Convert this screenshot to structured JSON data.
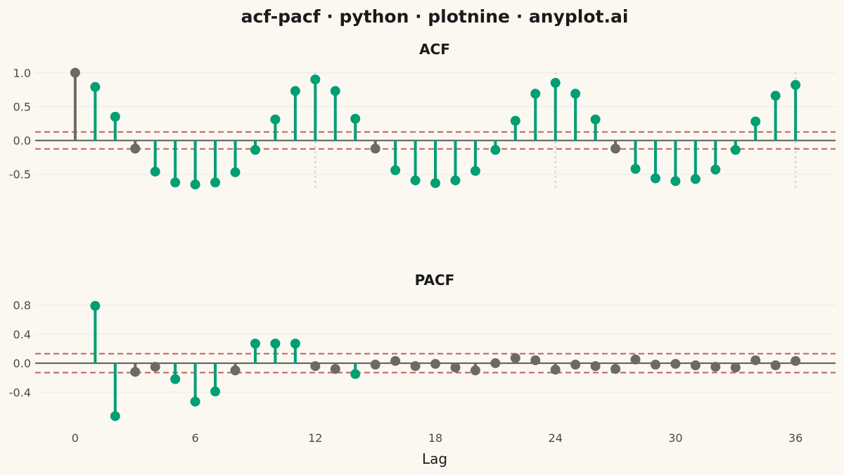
{
  "title": "acf-pacf · python · plotnine · anyplot.ai",
  "colors": {
    "background": "#FAF8F1",
    "significant": "#009E73",
    "insignificant": "#6B6B63",
    "confidence_band": "#C0605C",
    "zero_line": "#5A5A55",
    "seasonal_marker": "#A9D9C6",
    "grid": "#ECEAE2"
  },
  "chart_data": [
    {
      "type": "stem",
      "title": "ACF",
      "xlabel": "",
      "ylabel": "",
      "xlim": [
        -2,
        38
      ],
      "ylim": [
        -0.95,
        1.18
      ],
      "yticks": [
        1.0,
        0.5,
        0.0,
        -0.5
      ],
      "ytick_labels": [
        "1.0",
        "0.5",
        "0.0",
        "-0.5"
      ],
      "confidence_bound": 0.125,
      "seasonal_lags": [
        12,
        24,
        36
      ],
      "lags": [
        0,
        1,
        2,
        3,
        4,
        5,
        6,
        7,
        8,
        9,
        10,
        11,
        12,
        13,
        14,
        15,
        16,
        17,
        18,
        19,
        20,
        21,
        22,
        23,
        24,
        25,
        26,
        27,
        28,
        29,
        30,
        31,
        32,
        33,
        34,
        35,
        36
      ],
      "values": [
        1.0,
        0.79,
        0.35,
        -0.12,
        -0.46,
        -0.62,
        -0.65,
        -0.62,
        -0.47,
        -0.14,
        0.31,
        0.73,
        0.9,
        0.73,
        0.32,
        -0.12,
        -0.44,
        -0.59,
        -0.63,
        -0.59,
        -0.45,
        -0.14,
        0.29,
        0.69,
        0.85,
        0.69,
        0.31,
        -0.12,
        -0.42,
        -0.56,
        -0.6,
        -0.57,
        -0.43,
        -0.14,
        0.28,
        0.66,
        0.82
      ]
    },
    {
      "type": "stem",
      "title": "PACF",
      "xlabel": "Lag",
      "ylabel": "",
      "xlim": [
        -2,
        38
      ],
      "ylim": [
        -0.95,
        1.0
      ],
      "yticks": [
        0.8,
        0.4,
        0.0,
        -0.4
      ],
      "ytick_labels": [
        "0.8",
        "0.4",
        "0.0",
        "-0.4"
      ],
      "xticks": [
        0,
        6,
        12,
        18,
        24,
        30,
        36
      ],
      "xtick_labels": [
        "0",
        "6",
        "12",
        "18",
        "24",
        "30",
        "36"
      ],
      "confidence_bound": 0.13,
      "lags": [
        1,
        2,
        3,
        4,
        5,
        6,
        7,
        8,
        9,
        10,
        11,
        12,
        13,
        14,
        15,
        16,
        17,
        18,
        19,
        20,
        21,
        22,
        23,
        24,
        25,
        26,
        27,
        28,
        29,
        30,
        31,
        32,
        33,
        34,
        35,
        36
      ],
      "values": [
        0.79,
        -0.73,
        -0.12,
        -0.05,
        -0.22,
        -0.53,
        -0.39,
        -0.1,
        0.27,
        0.27,
        0.27,
        -0.04,
        -0.08,
        -0.15,
        -0.02,
        0.03,
        -0.04,
        -0.01,
        -0.06,
        -0.1,
        0.0,
        0.07,
        0.04,
        -0.09,
        -0.02,
        -0.04,
        -0.08,
        0.05,
        -0.02,
        -0.01,
        -0.03,
        -0.05,
        -0.06,
        0.04,
        -0.03,
        0.03
      ]
    }
  ]
}
